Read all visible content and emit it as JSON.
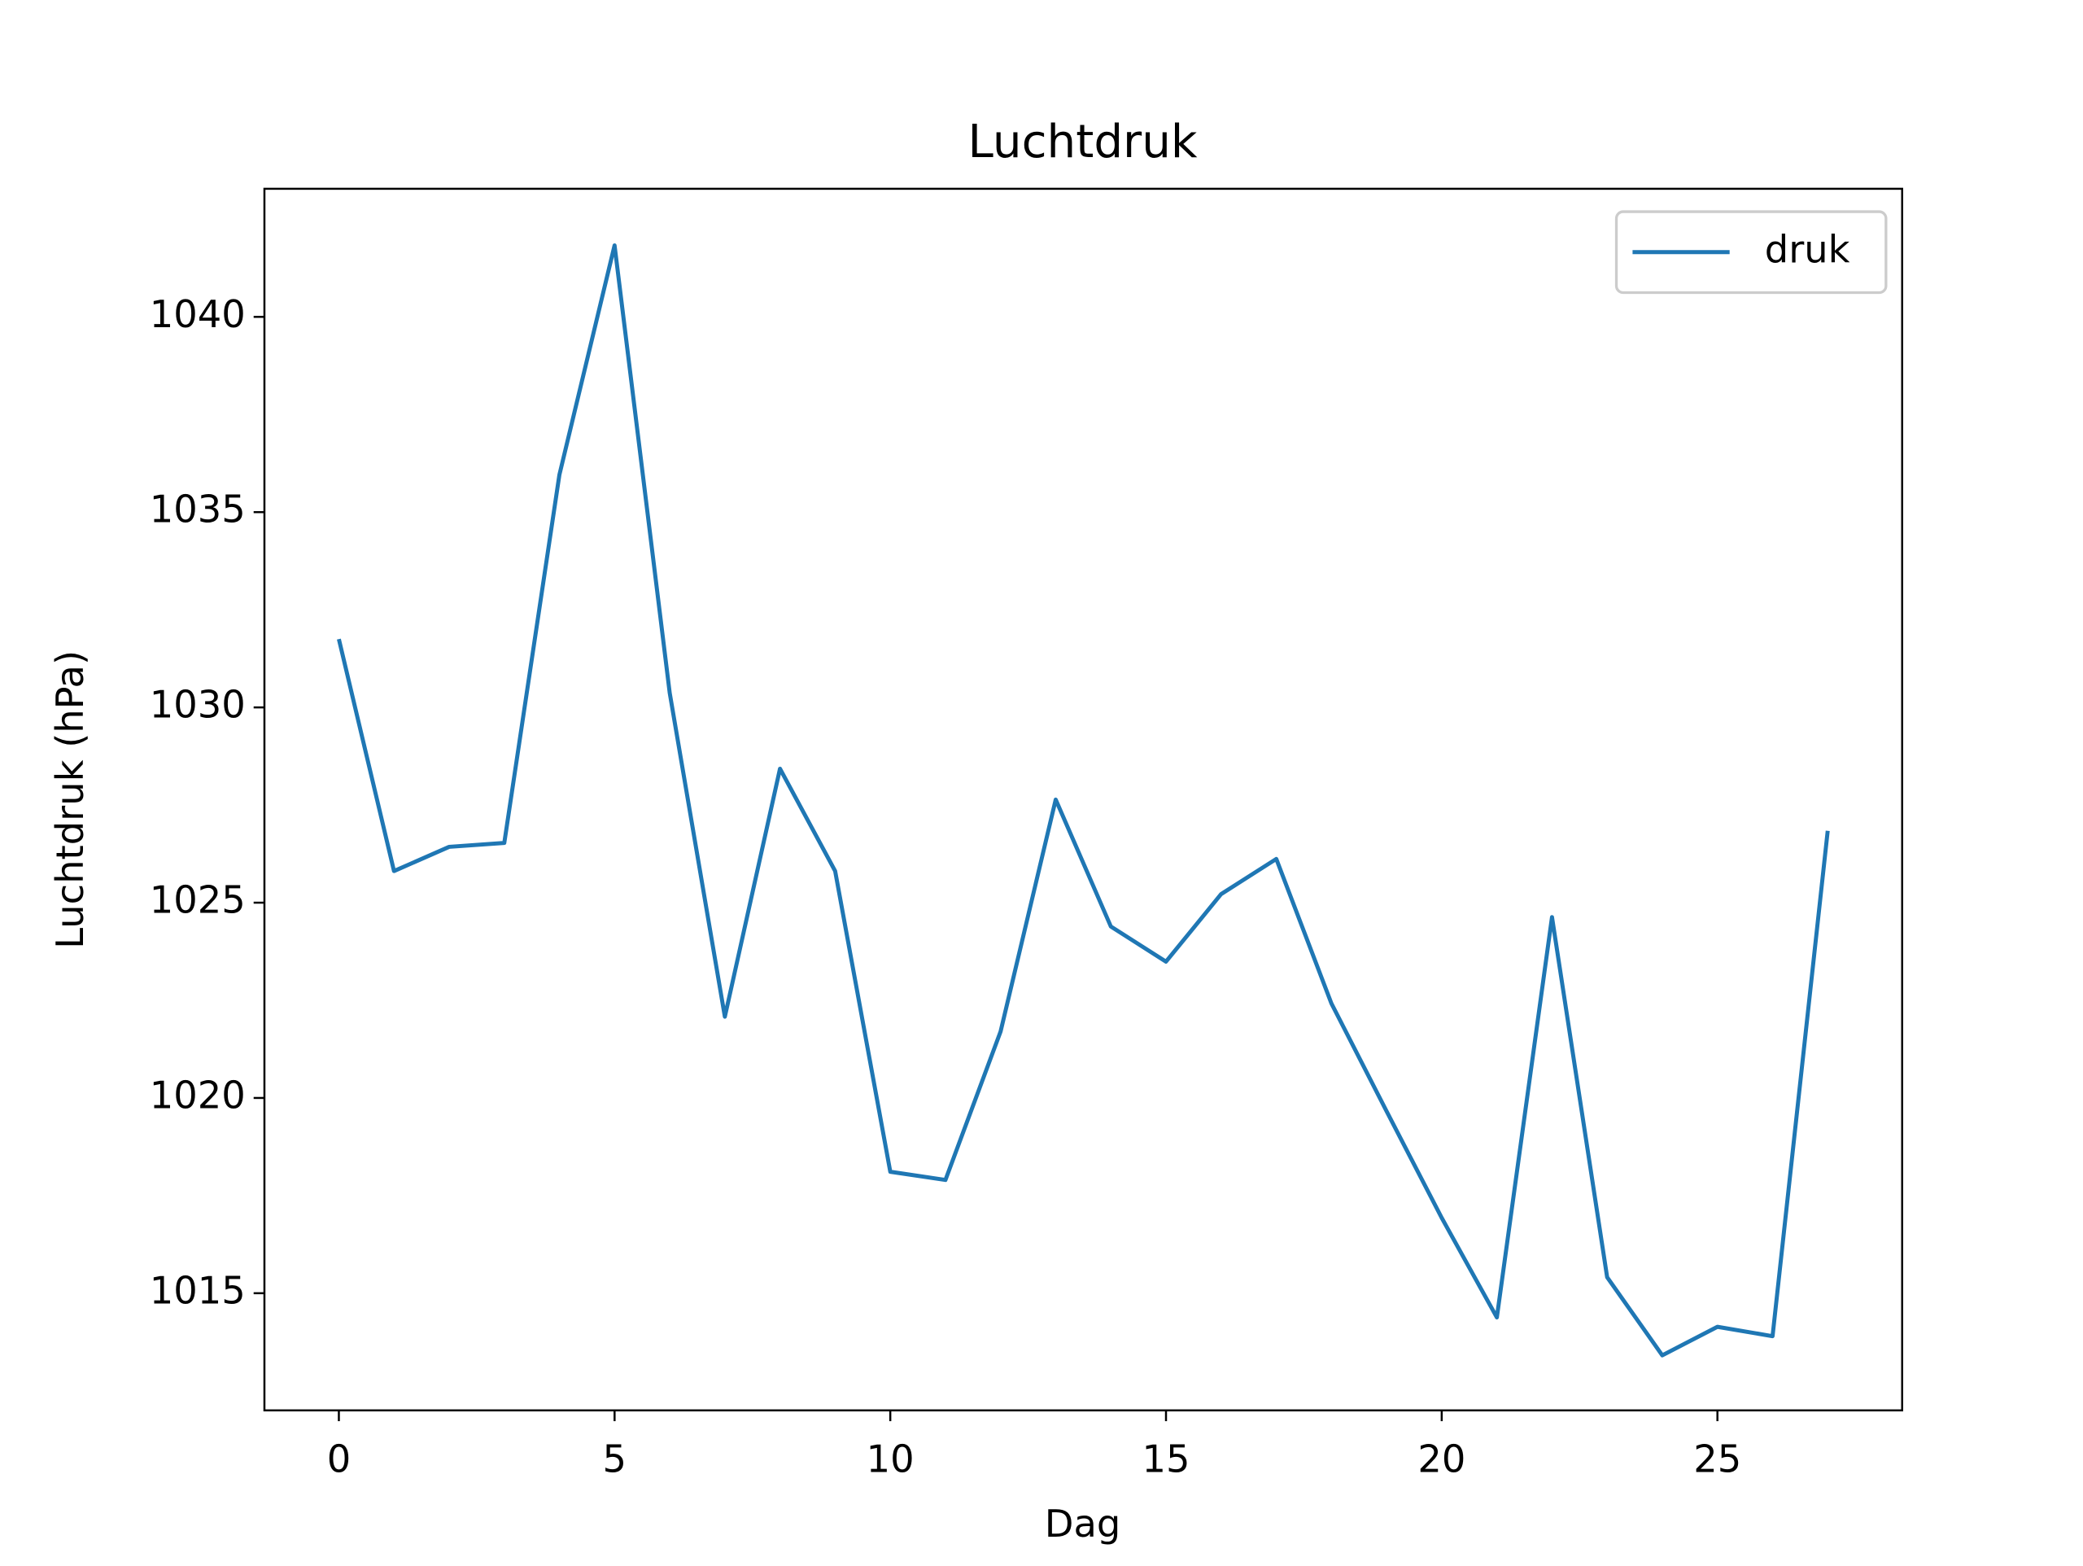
{
  "chart_data": {
    "type": "line",
    "title": "Luchtdruk",
    "xlabel": "Dag",
    "ylabel": "Luchtdruk (hPa)",
    "x": [
      0,
      1,
      2,
      3,
      4,
      5,
      6,
      7,
      8,
      9,
      10,
      11,
      12,
      13,
      14,
      15,
      16,
      17,
      18,
      19,
      20,
      21,
      22,
      23,
      24,
      25,
      26,
      27
    ],
    "series": [
      {
        "name": "druk",
        "color": "#1f77b4",
        "values": [
          1031.75,
          1025.81,
          1026.43,
          1026.53,
          1035.96,
          1041.83,
          1030.37,
          1022.08,
          1028.43,
          1025.81,
          1018.11,
          1017.9,
          1021.7,
          1027.64,
          1024.39,
          1023.49,
          1025.22,
          1026.12,
          1022.42,
          1019.66,
          1016.93,
          1014.38,
          1024.63,
          1015.41,
          1013.41,
          1014.14,
          1013.9,
          1026.84
        ]
      }
    ],
    "xlim": [
      -1.35,
      28.35
    ],
    "ylim": [
      1012.0,
      1043.28
    ],
    "xticks": [
      0,
      5,
      10,
      15,
      20,
      25
    ],
    "yticks": [
      1015,
      1020,
      1025,
      1030,
      1035,
      1040
    ],
    "legend": "upper right",
    "grid": false
  }
}
